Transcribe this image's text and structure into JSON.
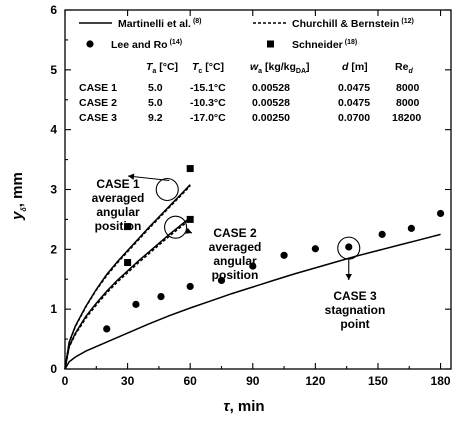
{
  "chart_data": {
    "type": "line",
    "xlabel": "τ, min",
    "ylabel": "y_δ, mm",
    "xlim": [
      0,
      185
    ],
    "ylim": [
      0,
      6
    ],
    "xticks": [
      0,
      30,
      60,
      90,
      120,
      150,
      180
    ],
    "yticks": [
      0,
      1,
      2,
      3,
      4,
      5,
      6
    ],
    "grid": false,
    "legend": [
      {
        "label": "Martinelli et al.",
        "ref": "(8)",
        "style": "solid-line"
      },
      {
        "label": "Churchill & Bernstein",
        "ref": "(12)",
        "style": "dashed-line"
      },
      {
        "label": "Lee and Ro",
        "ref": "(14)",
        "style": "circle-marker"
      },
      {
        "label": "Schneider",
        "ref": "(18)",
        "style": "square-marker"
      }
    ],
    "legend_placement": "top",
    "table": {
      "headers": [
        "T_a [°C]",
        "T_c [°C]",
        "w_a [kg/kg_DA]",
        "d [m]",
        "Re_d"
      ],
      "rows": [
        {
          "case": "CASE 1",
          "Ta": "5.0",
          "Tc": "-15.1°C",
          "wa": "0.00528",
          "d": "0.0475",
          "Re": "8000"
        },
        {
          "case": "CASE 2",
          "Ta": "5.0",
          "Tc": "-10.3°C",
          "wa": "0.00528",
          "d": "0.0475",
          "Re": "8000"
        },
        {
          "case": "CASE 3",
          "Ta": "9.2",
          "Tc": "-17.0°C",
          "wa": "0.00250",
          "d": "0.0700",
          "Re": "18200"
        }
      ]
    },
    "series": [
      {
        "name": "Martinelli et al.",
        "case": "CASE 1",
        "style": "solid",
        "x": [
          0,
          2,
          5,
          10,
          15,
          20,
          25,
          30,
          35,
          40,
          45,
          50,
          55,
          60
        ],
        "y": [
          0,
          0.45,
          0.72,
          1.05,
          1.33,
          1.58,
          1.79,
          1.98,
          2.17,
          2.36,
          2.54,
          2.72,
          2.9,
          3.08
        ]
      },
      {
        "name": "Churchill & Bernstein",
        "case": "CASE 1",
        "style": "dashed",
        "x": [
          0,
          2,
          5,
          10,
          15,
          20,
          25,
          30,
          35,
          40,
          45,
          50,
          55,
          60
        ],
        "y": [
          0,
          0.44,
          0.71,
          1.04,
          1.32,
          1.56,
          1.77,
          1.96,
          2.15,
          2.34,
          2.52,
          2.7,
          2.88,
          3.06
        ]
      },
      {
        "name": "Martinelli et al.",
        "case": "CASE 2",
        "style": "solid",
        "x": [
          0,
          2,
          5,
          10,
          15,
          20,
          25,
          30,
          35,
          40,
          45,
          50,
          55,
          60
        ],
        "y": [
          0,
          0.38,
          0.6,
          0.88,
          1.1,
          1.3,
          1.48,
          1.64,
          1.8,
          1.95,
          2.1,
          2.25,
          2.39,
          2.53
        ]
      },
      {
        "name": "Churchill & Bernstein",
        "case": "CASE 2",
        "style": "dashed",
        "x": [
          0,
          2,
          5,
          10,
          15,
          20,
          25,
          30,
          35,
          40,
          45,
          50,
          55,
          60
        ],
        "y": [
          0,
          0.37,
          0.58,
          0.85,
          1.07,
          1.27,
          1.45,
          1.61,
          1.77,
          1.92,
          2.07,
          2.22,
          2.36,
          2.5
        ]
      },
      {
        "name": "Martinelli et al.",
        "case": "CASE 3",
        "style": "solid",
        "x": [
          0,
          2,
          5,
          10,
          20,
          30,
          40,
          50,
          60,
          70,
          80,
          90,
          100,
          110,
          120,
          130,
          140,
          150,
          160,
          170,
          180
        ],
        "y": [
          0,
          0.12,
          0.2,
          0.3,
          0.45,
          0.6,
          0.75,
          0.89,
          1.02,
          1.14,
          1.26,
          1.37,
          1.48,
          1.59,
          1.69,
          1.79,
          1.89,
          1.98,
          2.07,
          2.16,
          2.25
        ]
      },
      {
        "name": "Lee and Ro",
        "case": "CASE 3",
        "style": "circle",
        "x": [
          20,
          34,
          46,
          60,
          75,
          90,
          105,
          120,
          136,
          152,
          166,
          180
        ],
        "y": [
          0.67,
          1.08,
          1.21,
          1.38,
          1.48,
          1.72,
          1.9,
          2.01,
          2.04,
          2.25,
          2.35,
          2.6
        ]
      },
      {
        "name": "Schneider",
        "case": "CASE 1",
        "style": "square",
        "x": [
          30,
          60
        ],
        "y": [
          2.38,
          3.35
        ]
      },
      {
        "name": "Schneider",
        "case": "CASE 2",
        "style": "square",
        "x": [
          30,
          60
        ],
        "y": [
          1.78,
          2.5
        ]
      }
    ],
    "annotations": [
      {
        "lines": [
          "CASE 1",
          "averaged",
          "angular",
          "position"
        ],
        "target_x": 49,
        "target_y": 3.0
      },
      {
        "lines": [
          "CASE 2",
          "averaged",
          "angular",
          "position"
        ],
        "target_x": 53,
        "target_y": 2.37
      },
      {
        "lines": [
          "CASE 3",
          "stagnation",
          "point"
        ],
        "target_x": 136,
        "target_y": 2.02
      }
    ]
  }
}
